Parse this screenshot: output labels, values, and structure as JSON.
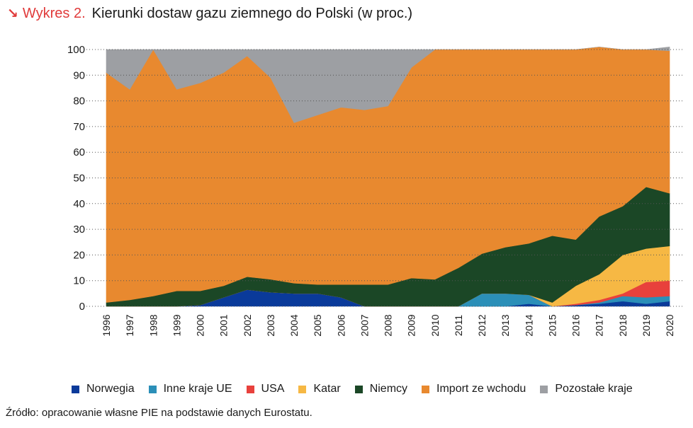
{
  "header": {
    "label": "Wykres 2.",
    "title": "Kierunki dostaw gazu ziemnego do Polski (w proc.)"
  },
  "source": "Źródło: opracowanie własne PIE na podstawie danych Eurostatu.",
  "chart_data": {
    "type": "area",
    "stacked": true,
    "title": "Kierunki dostaw gazu ziemnego do Polski (w proc.)",
    "xlabel": "",
    "ylabel": "",
    "ylim": [
      0,
      100
    ],
    "yticks": [
      0,
      10,
      20,
      30,
      40,
      50,
      60,
      70,
      80,
      90,
      100
    ],
    "grid": "horizontal-dotted",
    "legend_position": "bottom",
    "categories": [
      "1996",
      "1997",
      "1998",
      "1999",
      "2000",
      "2001",
      "2002",
      "2003",
      "2004",
      "2005",
      "2006",
      "2007",
      "2008",
      "2009",
      "2010",
      "2011",
      "2012",
      "2013",
      "2014",
      "2015",
      "2016",
      "2017",
      "2018",
      "2019",
      "2020"
    ],
    "series": [
      {
        "name": "Norwegia",
        "color": "#0a3a9a",
        "values": [
          0,
          0,
          0,
          0,
          0.5,
          3.5,
          6.5,
          5.5,
          5,
          5,
          3.5,
          0,
          0,
          0,
          0,
          0,
          0,
          0,
          1,
          0,
          0.5,
          1,
          2,
          1,
          2
        ]
      },
      {
        "name": "Inne kraje UE",
        "color": "#2b8fb8",
        "values": [
          0,
          0,
          0,
          0,
          0,
          0,
          0,
          0,
          0,
          0,
          0,
          0,
          0,
          0,
          0,
          0,
          5,
          5,
          3.5,
          0,
          0,
          0.5,
          2,
          2.5,
          2
        ]
      },
      {
        "name": "USA",
        "color": "#e8413c",
        "values": [
          0,
          0,
          0,
          0,
          0,
          0,
          0,
          0,
          0,
          0,
          0,
          0,
          0,
          0,
          0,
          0,
          0,
          0,
          0,
          0,
          0.5,
          1,
          1,
          6,
          6
        ]
      },
      {
        "name": "Katar",
        "color": "#f6b844",
        "values": [
          0,
          0,
          0,
          0,
          0,
          0,
          0,
          0,
          0,
          0,
          0,
          0,
          0,
          0,
          0,
          0,
          0,
          0,
          0,
          1.5,
          7,
          10,
          15,
          13,
          13.5
        ]
      },
      {
        "name": "Niemcy",
        "color": "#1b4726",
        "values": [
          1.5,
          2.5,
          4,
          6,
          5.5,
          4.5,
          5,
          5,
          4,
          3.5,
          5,
          8.5,
          8.5,
          11,
          10.5,
          15,
          15.5,
          18,
          20,
          26,
          18,
          22.5,
          19,
          24,
          20.5
        ]
      },
      {
        "name": "Import ze wchodu",
        "color": "#e8892f",
        "values": [
          89.5,
          82,
          96,
          78.5,
          81,
          83,
          86,
          78.5,
          62.5,
          66,
          69,
          68,
          69.5,
          82,
          89.5,
          85,
          79.5,
          77,
          75.5,
          72.5,
          74,
          66,
          61,
          53.5,
          55.5
        ]
      },
      {
        "name": "Pozostałe kraje",
        "color": "#9d9fa3",
        "values": [
          9,
          15.5,
          0,
          15.5,
          13,
          9,
          2.5,
          11,
          28.5,
          25.5,
          22.5,
          23.5,
          22,
          7,
          0,
          0,
          0,
          0,
          0,
          0,
          0,
          0,
          0,
          0,
          1.5
        ]
      }
    ]
  }
}
